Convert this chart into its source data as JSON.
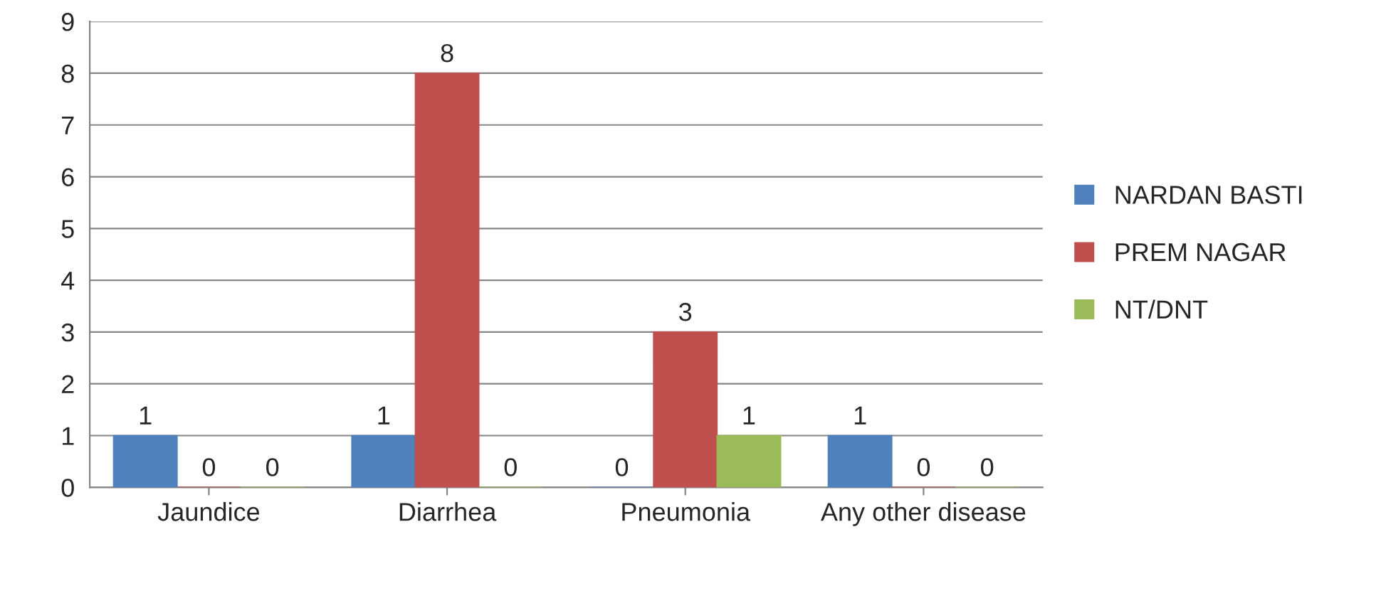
{
  "chart_data": {
    "type": "bar",
    "categories": [
      "Jaundice",
      "Diarrhea",
      "Pneumonia",
      "Any other disease"
    ],
    "series": [
      {
        "name": "NARDAN BASTI",
        "color": "#4f81bd",
        "values": [
          1,
          1,
          0,
          1
        ]
      },
      {
        "name": "PREM NAGAR",
        "color": "#c0504d",
        "values": [
          0,
          8,
          3,
          0
        ]
      },
      {
        "name": "NT/DNT",
        "color": "#9bbb59",
        "values": [
          0,
          0,
          1,
          0
        ]
      }
    ],
    "ylim": [
      0,
      9
    ],
    "yticks": [
      0,
      1,
      2,
      3,
      4,
      5,
      6,
      7,
      8,
      9
    ],
    "grid": "y",
    "legend": "right",
    "data_labels": true
  }
}
